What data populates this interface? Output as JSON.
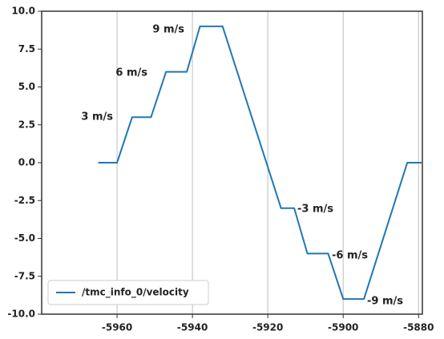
{
  "chart_data": {
    "type": "line",
    "x": [
      -5965,
      -5960,
      -5956,
      -5951,
      -5947,
      -5941.5,
      -5938,
      -5932,
      -5916.5,
      -5913,
      -5909.5,
      -5904,
      -5900,
      -5894.5,
      -5883,
      -5879
    ],
    "series": [
      {
        "name": "/tmc_info_0/velocity",
        "color": "#1f77b4",
        "values": [
          0,
          0,
          3,
          3,
          6,
          6,
          9,
          9,
          -3,
          -3,
          -6,
          -6,
          -9,
          -9,
          0,
          0
        ]
      }
    ],
    "xlim": [
      -5980,
      -5879
    ],
    "xticks": [
      -5960,
      -5940,
      -5920,
      -5900,
      -5880
    ],
    "ylim": [
      -10,
      10
    ],
    "yticks": [
      {
        "value": -10,
        "label": "-10.0"
      },
      -7.5,
      {
        "value": -5,
        "label": "-5.0"
      },
      -2.5,
      {
        "value": 0,
        "label": "0.0"
      },
      2.5,
      {
        "value": 5,
        "label": "5.0"
      },
      7.5,
      {
        "value": 10,
        "label": "10.0"
      }
    ],
    "grid": "x",
    "legend": "lower left",
    "annotations": [
      "9 m/s",
      "6 m/s",
      "3 m/s",
      "-3 m/s",
      "-6 m/s",
      "-9 m/s"
    ]
  }
}
